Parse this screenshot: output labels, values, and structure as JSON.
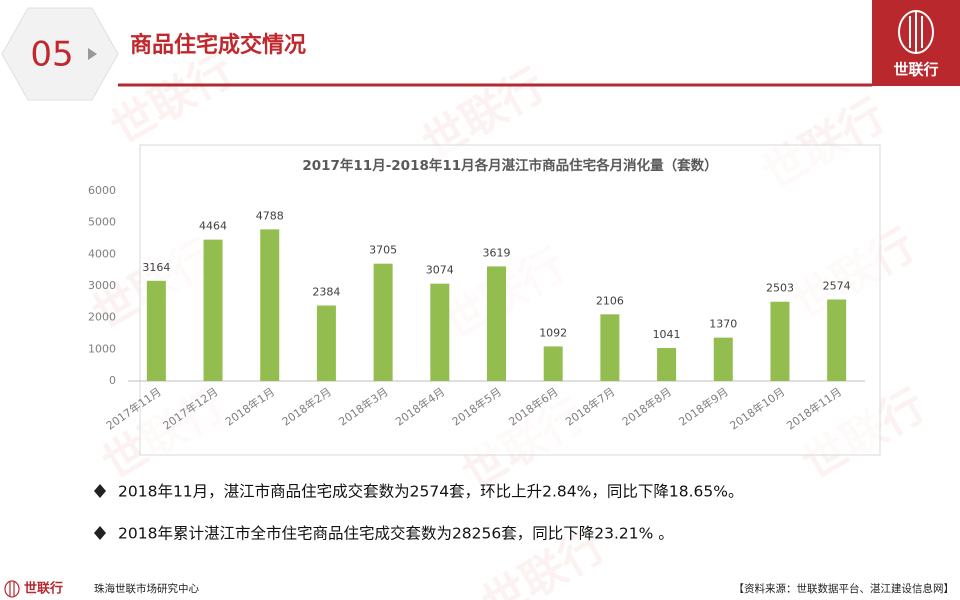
{
  "header": {
    "number": "05",
    "title": "商品住宅成交情况"
  },
  "logo": "世联行",
  "chart_data": {
    "type": "bar",
    "title": "2017年11月-2018年11月各月湛江市商品住宅各月消化量（套数）",
    "categories": [
      "2017年11月",
      "2017年12月",
      "2018年1月",
      "2018年2月",
      "2018年3月",
      "2018年4月",
      "2018年5月",
      "2018年6月",
      "2018年7月",
      "2018年8月",
      "2018年9月",
      "2018年10月",
      "2018年11月"
    ],
    "values": [
      3164,
      4464,
      4788,
      2384,
      3705,
      3074,
      3619,
      1092,
      2106,
      1041,
      1370,
      2503,
      2574
    ],
    "color": "#94bd50",
    "ylim": [
      0,
      6000
    ],
    "yticks": [
      0,
      1000,
      2000,
      3000,
      4000,
      5000,
      6000
    ],
    "grid": false
  },
  "bullets": [
    "2018年11月，湛江市商品住宅成交套数为2574套，环比上升2.84%，同比下降18.65%。",
    "2018年累计湛江市全市住宅商品住宅成交套数为28256套，同比下降23.21% 。"
  ],
  "footer": {
    "company": "世联行",
    "dept": "珠海世联市场研究中心",
    "source": "【资料来源：世联数据平台、湛江建设信息网】"
  }
}
